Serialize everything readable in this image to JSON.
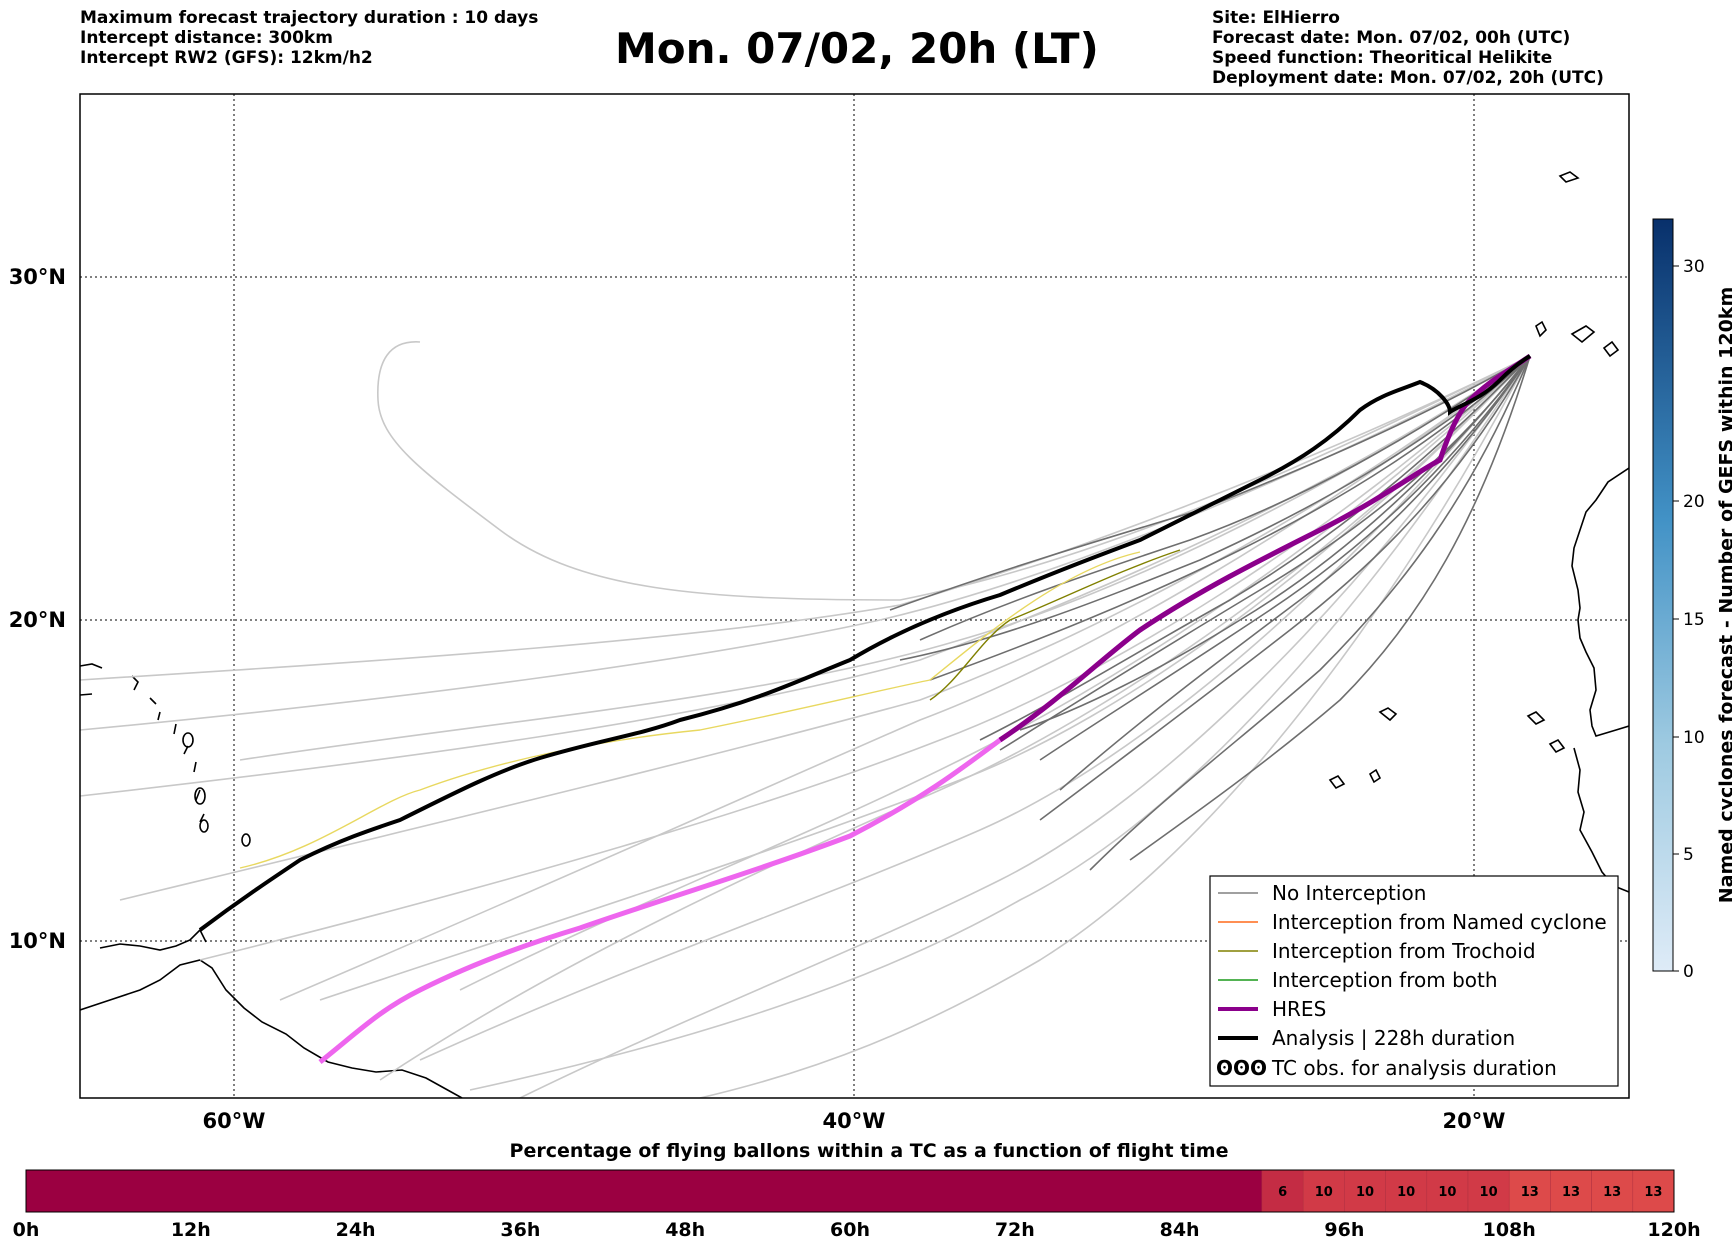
{
  "header": {
    "left_lines": [
      "Maximum forecast trajectory duration : 10 days",
      "Intercept distance: 300km",
      "Intercept RW2 (GFS):  12km/h2"
    ],
    "title": "Mon. 07/02, 20h (LT)",
    "right_lines": [
      "Site: ElHierro",
      "Forecast date: Mon. 07/02, 00h (UTC)",
      "Speed function: Theoritical Helikite",
      "Deployment date: Mon. 07/02, 20h (UTC)"
    ]
  },
  "map": {
    "lon_ticks": [
      "60°W",
      "40°W",
      "20°W"
    ],
    "lat_ticks": [
      "30°N",
      "20°N",
      "10°N"
    ],
    "legend": [
      {
        "label": "No Interception",
        "color": "#808080"
      },
      {
        "label": "Interception from Named cyclone",
        "color": "#ff6a1a"
      },
      {
        "label": "Interception from Trochoid",
        "color": "#808000"
      },
      {
        "label": "Interception from both",
        "color": "#1a9a1a"
      },
      {
        "label": "HRES",
        "color": "#8b008b"
      },
      {
        "label": "Analysis | 228h duration",
        "color": "#000000"
      },
      {
        "label": "TC obs. for analysis duration",
        "color": "#000000",
        "symbol": "ʘʘʘ"
      }
    ]
  },
  "colorbar": {
    "label": "Named cyclones forecast - Number of GEFS within 120km",
    "ticks": [
      "0",
      "5",
      "10",
      "15",
      "20",
      "30"
    ]
  },
  "chart_data": {
    "type": "heatmap",
    "title": "Percentage of flying ballons within a TC as a function of flight time",
    "x_tick_labels": [
      "0h",
      "12h",
      "24h",
      "36h",
      "48h",
      "60h",
      "72h",
      "84h",
      "96h",
      "108h",
      "120h"
    ],
    "x_range_hours": [
      0,
      120
    ],
    "segments": [
      {
        "start_h": 0,
        "end_h": 90,
        "value": null,
        "color": "#9b0041"
      },
      {
        "start_h": 90,
        "end_h": 93,
        "value": 6,
        "color": "#c42c44"
      },
      {
        "start_h": 93,
        "end_h": 96,
        "value": 10,
        "color": "#d13a47"
      },
      {
        "start_h": 96,
        "end_h": 99,
        "value": 10,
        "color": "#d13a47"
      },
      {
        "start_h": 99,
        "end_h": 102,
        "value": 10,
        "color": "#d13a47"
      },
      {
        "start_h": 102,
        "end_h": 105,
        "value": 10,
        "color": "#d13a47"
      },
      {
        "start_h": 105,
        "end_h": 108,
        "value": 10,
        "color": "#d13a47"
      },
      {
        "start_h": 108,
        "end_h": 111,
        "value": 13,
        "color": "#dd4a4a"
      },
      {
        "start_h": 111,
        "end_h": 114,
        "value": 13,
        "color": "#dd4a4a"
      },
      {
        "start_h": 114,
        "end_h": 117,
        "value": 13,
        "color": "#dd4a4a"
      },
      {
        "start_h": 117,
        "end_h": 120,
        "value": 13,
        "color": "#dd4a4a"
      }
    ]
  }
}
